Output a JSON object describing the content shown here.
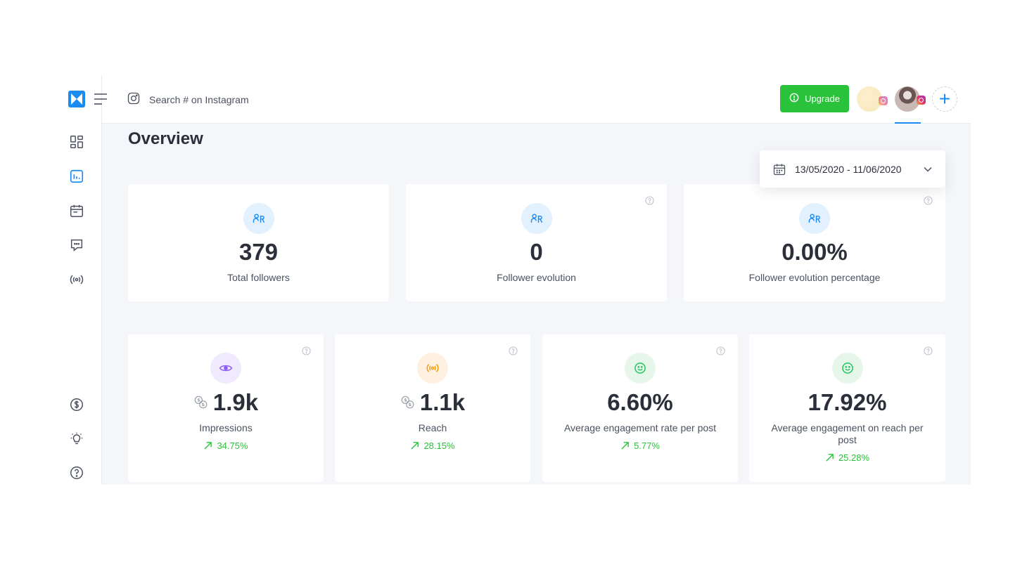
{
  "header": {
    "search_placeholder": "Search # on Instagram",
    "upgrade_label": "Upgrade"
  },
  "sidebar": {
    "items": [
      {
        "icon": "dashboard-icon"
      },
      {
        "icon": "analytics-icon",
        "active": true
      },
      {
        "icon": "calendar-icon"
      },
      {
        "icon": "inbox-icon"
      },
      {
        "icon": "listening-icon"
      },
      {
        "icon": "pricing-icon"
      },
      {
        "icon": "idea-icon"
      },
      {
        "icon": "help-icon"
      }
    ]
  },
  "main": {
    "title": "Overview",
    "date_range": "13/05/2020 - 11/06/2020",
    "row1": [
      {
        "value": "379",
        "label": "Total followers",
        "icon": "followers-icon"
      },
      {
        "value": "0",
        "label": "Follower evolution",
        "icon": "followers-icon"
      },
      {
        "value": "0.00%",
        "label": "Follower evolution percentage",
        "icon": "followers-icon"
      }
    ],
    "row2": [
      {
        "value": "1.9k",
        "label": "Impressions",
        "trend": "34.75%",
        "icon": "eye-icon"
      },
      {
        "value": "1.1k",
        "label": "Reach",
        "trend": "28.15%",
        "icon": "broadcast-icon"
      },
      {
        "value": "6.60%",
        "label": "Average engagement rate per post",
        "trend": "5.77%",
        "icon": "smile-icon"
      },
      {
        "value": "17.92%",
        "label": "Average engagement on reach per post",
        "trend": "25.28%",
        "icon": "smile-icon"
      }
    ]
  },
  "colors": {
    "accent": "#1a8bf0",
    "upgrade": "#2bc23b",
    "trend_up": "#2bc23b",
    "impressions": "#8b5cf6",
    "reach": "#f59e0b",
    "engagement": "#22c55e"
  }
}
